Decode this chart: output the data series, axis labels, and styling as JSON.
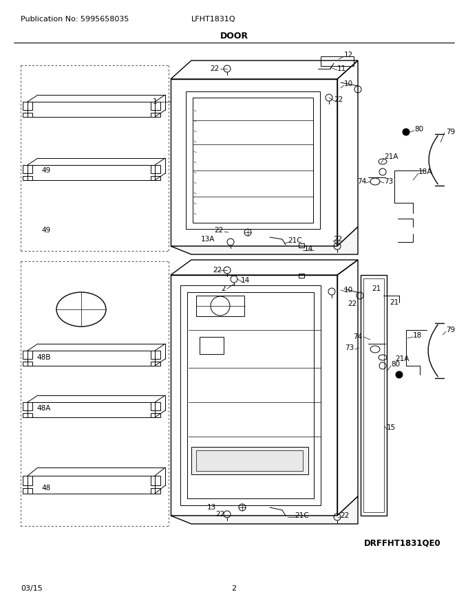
{
  "pub_no": "Publication No: 5995658035",
  "model": "LFHT1831Q",
  "section": "DOOR",
  "diagram_id": "DRFFHT1831QE0",
  "date": "03/15",
  "page": "2",
  "bg_color": "#ffffff"
}
